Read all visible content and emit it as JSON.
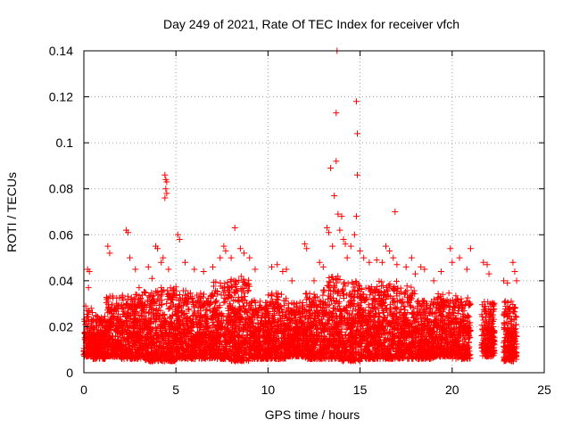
{
  "chart_data": {
    "type": "scatter",
    "title": "Day 249 of 2021, Rate Of TEC Index for receiver vfch",
    "xlabel": "GPS time / hours",
    "ylabel": "ROTI / TECUs",
    "xlim": [
      0,
      25
    ],
    "ylim": [
      0,
      0.14
    ],
    "xticks": [
      "0",
      "5",
      "10",
      "15",
      "20",
      "25"
    ],
    "yticks": [
      "0",
      "0.02",
      "0.04",
      "0.06",
      "0.08",
      "0.1",
      "0.12",
      "0.14"
    ],
    "grid": true,
    "marker": "plus",
    "series_color": "#ff0000",
    "points": [
      [
        0.1,
        0.029
      ],
      [
        0.2,
        0.045
      ],
      [
        0.25,
        0.037
      ],
      [
        0.3,
        0.044
      ],
      [
        0.4,
        0.028
      ],
      [
        1.3,
        0.055
      ],
      [
        1.4,
        0.052
      ],
      [
        2.3,
        0.062
      ],
      [
        2.4,
        0.061
      ],
      [
        2.5,
        0.05
      ],
      [
        2.8,
        0.045
      ],
      [
        3.0,
        0.037
      ],
      [
        3.5,
        0.046
      ],
      [
        3.7,
        0.041
      ],
      [
        3.9,
        0.055
      ],
      [
        4.0,
        0.054
      ],
      [
        4.2,
        0.048
      ],
      [
        4.3,
        0.05
      ],
      [
        4.4,
        0.086
      ],
      [
        4.45,
        0.084
      ],
      [
        4.5,
        0.083
      ],
      [
        4.45,
        0.08
      ],
      [
        4.5,
        0.078
      ],
      [
        4.4,
        0.076
      ],
      [
        4.6,
        0.045
      ],
      [
        5.1,
        0.06
      ],
      [
        5.2,
        0.058
      ],
      [
        5.5,
        0.048
      ],
      [
        6.0,
        0.045
      ],
      [
        6.5,
        0.044
      ],
      [
        7.0,
        0.046
      ],
      [
        7.4,
        0.05
      ],
      [
        7.6,
        0.055
      ],
      [
        7.7,
        0.053
      ],
      [
        8.0,
        0.05
      ],
      [
        8.2,
        0.063
      ],
      [
        8.5,
        0.054
      ],
      [
        8.7,
        0.052
      ],
      [
        9.0,
        0.05
      ],
      [
        9.3,
        0.045
      ],
      [
        10.2,
        0.046
      ],
      [
        10.5,
        0.047
      ],
      [
        10.8,
        0.044
      ],
      [
        11.0,
        0.045
      ],
      [
        11.3,
        0.04
      ],
      [
        12.0,
        0.056
      ],
      [
        12.1,
        0.054
      ],
      [
        12.5,
        0.04
      ],
      [
        12.8,
        0.048
      ],
      [
        13.0,
        0.046
      ],
      [
        13.2,
        0.063
      ],
      [
        13.3,
        0.061
      ],
      [
        13.4,
        0.089
      ],
      [
        13.5,
        0.055
      ],
      [
        13.6,
        0.077
      ],
      [
        13.7,
        0.092
      ],
      [
        13.7,
        0.113
      ],
      [
        13.75,
        0.14
      ],
      [
        13.8,
        0.069
      ],
      [
        13.9,
        0.062
      ],
      [
        14.0,
        0.068
      ],
      [
        14.1,
        0.058
      ],
      [
        14.2,
        0.056
      ],
      [
        14.3,
        0.05
      ],
      [
        14.5,
        0.055
      ],
      [
        14.7,
        0.06
      ],
      [
        14.8,
        0.118
      ],
      [
        14.85,
        0.104
      ],
      [
        14.85,
        0.086
      ],
      [
        14.8,
        0.068
      ],
      [
        15.0,
        0.053
      ],
      [
        15.2,
        0.05
      ],
      [
        15.5,
        0.048
      ],
      [
        15.9,
        0.049
      ],
      [
        16.2,
        0.048
      ],
      [
        16.4,
        0.055
      ],
      [
        16.6,
        0.053
      ],
      [
        16.8,
        0.05
      ],
      [
        16.9,
        0.07
      ],
      [
        17.0,
        0.047
      ],
      [
        17.5,
        0.046
      ],
      [
        17.8,
        0.05
      ],
      [
        18.0,
        0.043
      ],
      [
        18.3,
        0.046
      ],
      [
        18.5,
        0.045
      ],
      [
        19.0,
        0.04
      ],
      [
        19.4,
        0.044
      ],
      [
        19.9,
        0.054
      ],
      [
        20.0,
        0.048
      ],
      [
        20.4,
        0.05
      ],
      [
        20.8,
        0.045
      ],
      [
        21.0,
        0.054
      ],
      [
        21.7,
        0.048
      ],
      [
        21.9,
        0.047
      ],
      [
        22.0,
        0.043
      ],
      [
        22.8,
        0.04
      ],
      [
        23.0,
        0.039
      ],
      [
        23.3,
        0.048
      ],
      [
        23.4,
        0.044
      ],
      [
        23.5,
        0.04
      ]
    ],
    "bands": [
      {
        "x": [
          0.0,
          0.5
        ],
        "y": [
          0.007,
          0.026
        ]
      },
      {
        "x": [
          0.5,
          1.2
        ],
        "y": [
          0.006,
          0.024
        ]
      },
      {
        "x": [
          1.2,
          2.0
        ],
        "y": [
          0.007,
          0.032
        ]
      },
      {
        "x": [
          2.0,
          3.0
        ],
        "y": [
          0.006,
          0.033
        ]
      },
      {
        "x": [
          3.0,
          4.0
        ],
        "y": [
          0.005,
          0.034
        ]
      },
      {
        "x": [
          4.0,
          5.0
        ],
        "y": [
          0.005,
          0.036
        ]
      },
      {
        "x": [
          5.0,
          6.0
        ],
        "y": [
          0.006,
          0.034
        ]
      },
      {
        "x": [
          6.0,
          7.0
        ],
        "y": [
          0.006,
          0.033
        ]
      },
      {
        "x": [
          7.0,
          8.0
        ],
        "y": [
          0.006,
          0.038
        ]
      },
      {
        "x": [
          8.0,
          9.0
        ],
        "y": [
          0.005,
          0.04
        ]
      },
      {
        "x": [
          9.0,
          10.0
        ],
        "y": [
          0.006,
          0.03
        ]
      },
      {
        "x": [
          10.0,
          11.0
        ],
        "y": [
          0.006,
          0.033
        ]
      },
      {
        "x": [
          11.0,
          12.0
        ],
        "y": [
          0.007,
          0.03
        ]
      },
      {
        "x": [
          12.0,
          13.0
        ],
        "y": [
          0.006,
          0.033
        ]
      },
      {
        "x": [
          13.0,
          14.0
        ],
        "y": [
          0.006,
          0.04
        ]
      },
      {
        "x": [
          14.0,
          15.0
        ],
        "y": [
          0.005,
          0.038
        ]
      },
      {
        "x": [
          15.0,
          16.0
        ],
        "y": [
          0.006,
          0.036
        ]
      },
      {
        "x": [
          16.0,
          17.0
        ],
        "y": [
          0.006,
          0.038
        ]
      },
      {
        "x": [
          17.0,
          18.0
        ],
        "y": [
          0.006,
          0.036
        ]
      },
      {
        "x": [
          18.0,
          19.0
        ],
        "y": [
          0.006,
          0.03
        ]
      },
      {
        "x": [
          19.0,
          20.0
        ],
        "y": [
          0.007,
          0.033
        ]
      },
      {
        "x": [
          20.0,
          21.0
        ],
        "y": [
          0.006,
          0.032
        ]
      },
      {
        "x": [
          21.6,
          22.3
        ],
        "y": [
          0.007,
          0.03
        ]
      },
      {
        "x": [
          22.8,
          23.5
        ],
        "y": [
          0.005,
          0.03
        ]
      }
    ]
  }
}
